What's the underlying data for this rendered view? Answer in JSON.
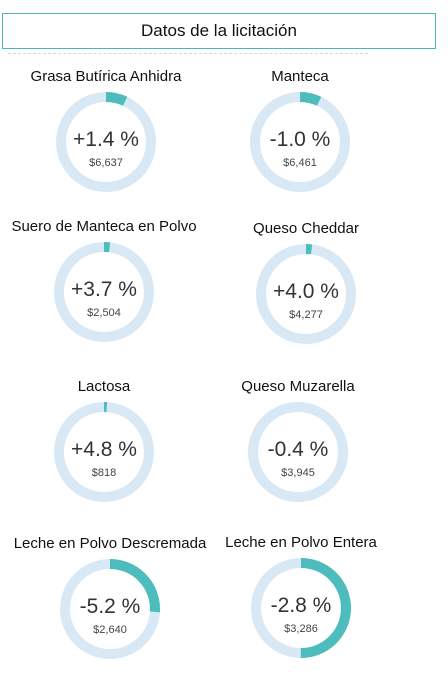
{
  "header": {
    "title": "Datos de la licitación"
  },
  "colors": {
    "ring_track": "#d9e8f5",
    "ring_fill": "#4dbcbc",
    "border": "#4ab5b3"
  },
  "items": [
    {
      "label": "Grasa Butírica Anhidra",
      "change": "+1.4 %",
      "price": "$6,637",
      "ring_fraction": 0.07
    },
    {
      "label": "Manteca",
      "change": "-1.0 %",
      "price": "$6,461",
      "ring_fraction": 0.07
    },
    {
      "label": "Suero de Manteca en Polvo",
      "change": "+3.7 %",
      "price": "$2,504",
      "ring_fraction": 0.02
    },
    {
      "label": "Queso Cheddar",
      "change": "+4.0 %",
      "price": "$4,277",
      "ring_fraction": 0.02
    },
    {
      "label": "Lactosa",
      "change": "+4.8 %",
      "price": "$818",
      "ring_fraction": 0.01
    },
    {
      "label": "Queso Muzarella",
      "change": "-0.4 %",
      "price": "$3,945",
      "ring_fraction": 0.0
    },
    {
      "label": "Leche en Polvo Descremada",
      "change": "-5.2 %",
      "price": "$2,640",
      "ring_fraction": 0.26
    },
    {
      "label": "Leche en Polvo Entera",
      "change": "-2.8 %",
      "price": "$3,286",
      "ring_fraction": 0.5
    }
  ]
}
